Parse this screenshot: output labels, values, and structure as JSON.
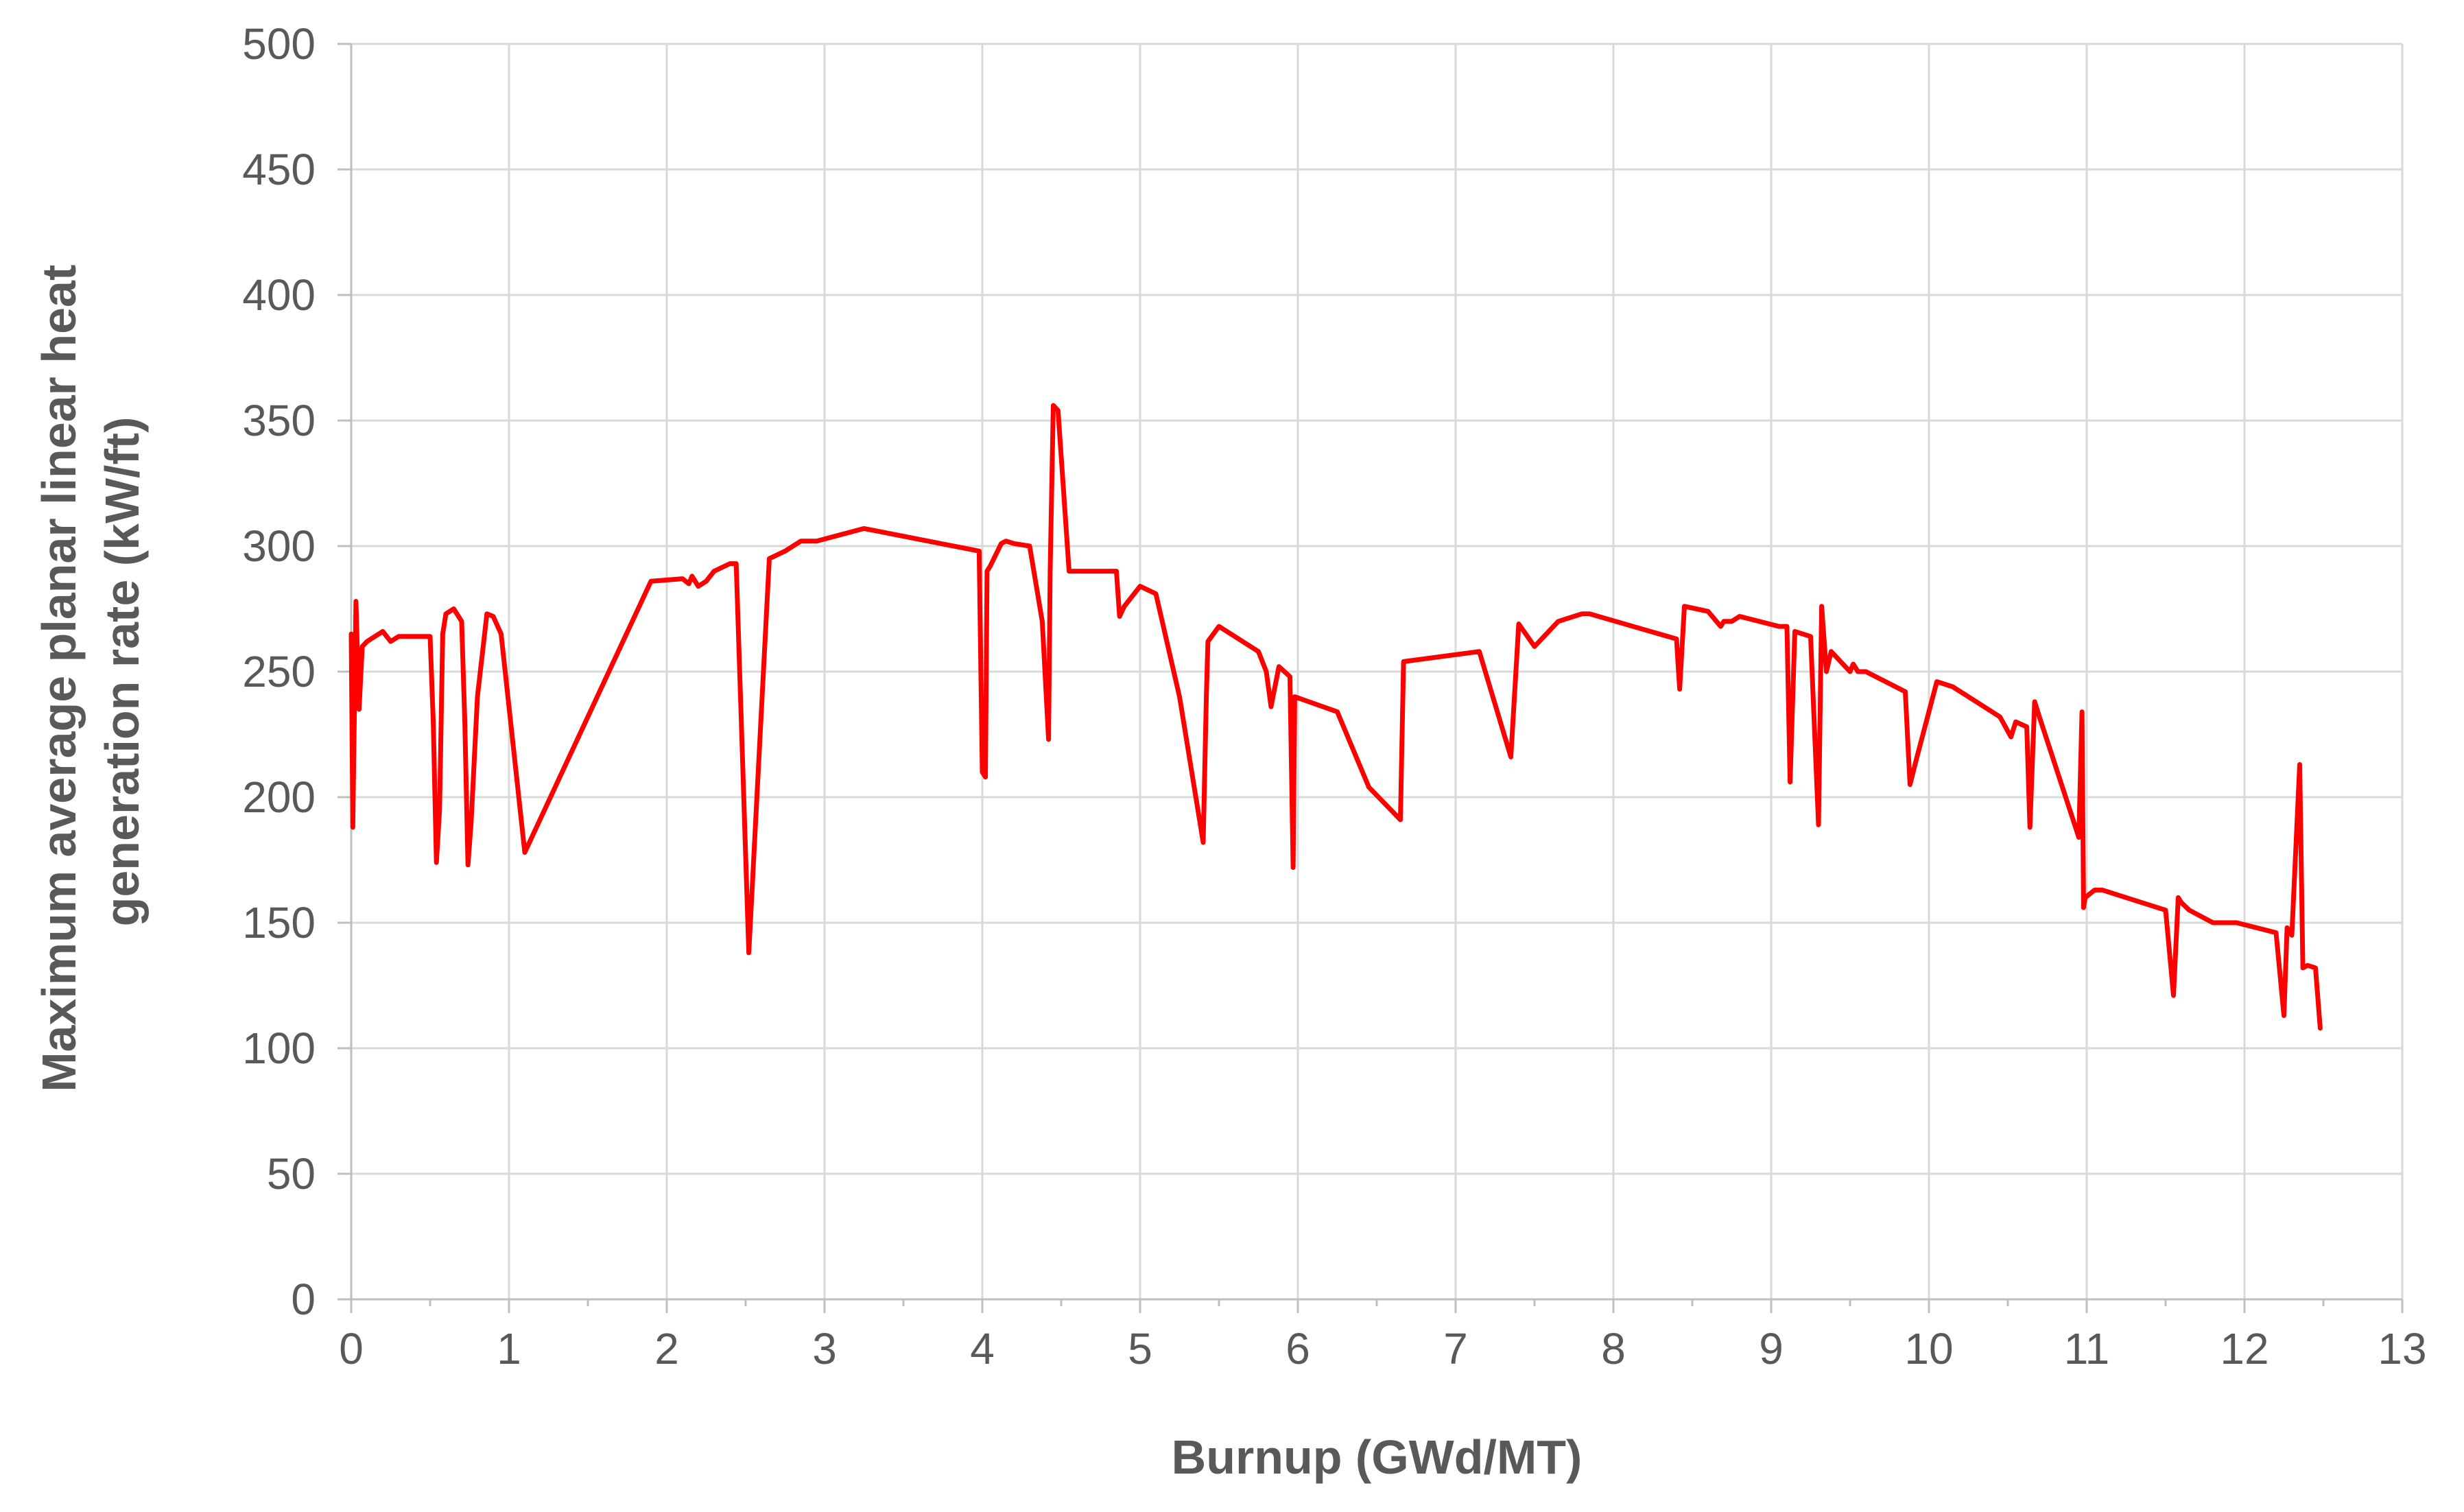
{
  "chart_data": {
    "type": "line",
    "title": "",
    "xlabel": "Burnup (GWd/MT)",
    "ylabel_lines": [
      "Maximum average planar linear heat",
      "generation rate  (kW/ft)"
    ],
    "xlim": [
      0,
      13
    ],
    "ylim": [
      0,
      500
    ],
    "x_ticks": [
      0,
      1,
      2,
      3,
      4,
      5,
      6,
      7,
      8,
      9,
      10,
      11,
      12,
      13
    ],
    "y_ticks": [
      0,
      50,
      100,
      150,
      200,
      250,
      300,
      350,
      400,
      450,
      500
    ],
    "grid": true,
    "legend": "none",
    "series": [
      {
        "color": "#ff0000",
        "x": [
          0.0,
          0.01,
          0.03,
          0.05,
          0.07,
          0.1,
          0.2,
          0.25,
          0.3,
          0.45,
          0.5,
          0.52,
          0.54,
          0.56,
          0.58,
          0.6,
          0.65,
          0.7,
          0.72,
          0.74,
          0.76,
          0.8,
          0.86,
          0.9,
          0.95,
          1.1,
          1.9,
          2.1,
          2.14,
          2.16,
          2.2,
          2.25,
          2.3,
          2.4,
          2.44,
          2.52,
          2.65,
          2.75,
          2.85,
          2.95,
          3.25,
          3.98,
          4.0,
          4.02,
          4.03,
          4.05,
          4.12,
          4.15,
          4.2,
          4.3,
          4.38,
          4.42,
          4.43,
          4.45,
          4.48,
          4.55,
          4.57,
          4.6,
          4.85,
          4.87,
          4.9,
          5.0,
          5.1,
          5.25,
          5.4,
          5.42,
          5.43,
          5.5,
          5.75,
          5.8,
          5.83,
          5.88,
          5.95,
          5.97,
          5.98,
          6.25,
          6.45,
          6.65,
          6.67,
          7.15,
          7.35,
          7.4,
          7.5,
          7.65,
          7.8,
          7.85,
          8.4,
          8.42,
          8.45,
          8.6,
          8.68,
          8.7,
          8.75,
          8.8,
          9.05,
          9.1,
          9.12,
          9.15,
          9.25,
          9.3,
          9.32,
          9.35,
          9.38,
          9.5,
          9.52,
          9.55,
          9.6,
          9.85,
          9.88,
          9.92,
          10.05,
          10.15,
          10.3,
          10.45,
          10.52,
          10.55,
          10.62,
          10.64,
          10.67,
          10.7,
          10.95,
          10.97,
          10.98,
          10.99,
          11.05,
          11.1,
          11.25,
          11.5,
          11.55,
          11.58,
          11.6,
          11.65,
          11.8,
          11.95,
          12.2,
          12.25,
          12.27,
          12.3,
          12.35,
          12.37,
          12.4,
          12.45,
          12.48
        ],
        "y": [
          265,
          188,
          278,
          235,
          260,
          262,
          266,
          262,
          264,
          264,
          264,
          230,
          174,
          195,
          265,
          273,
          275,
          270,
          230,
          173,
          190,
          240,
          273,
          272,
          265,
          178,
          286,
          287,
          285,
          288,
          284,
          286,
          290,
          293,
          293,
          138,
          295,
          298,
          302,
          302,
          307,
          298,
          210,
          208,
          290,
          292,
          301,
          302,
          301,
          300,
          270,
          223,
          290,
          356,
          354,
          290,
          290,
          290,
          290,
          272,
          276,
          284,
          281,
          240,
          182,
          240,
          262,
          268,
          258,
          250,
          236,
          252,
          248,
          172,
          240,
          234,
          204,
          191,
          254,
          258,
          216,
          269,
          260,
          270,
          273,
          273,
          263,
          243,
          276,
          274,
          268,
          270,
          270,
          272,
          268,
          268,
          206,
          266,
          264,
          189,
          276,
          250,
          258,
          250,
          253,
          250,
          250,
          242,
          205,
          215,
          246,
          244,
          238,
          232,
          224,
          230,
          228,
          188,
          238,
          232,
          184,
          234,
          156,
          160,
          163,
          163,
          160,
          155,
          121,
          160,
          158,
          155,
          150,
          150,
          146,
          113,
          148,
          145,
          213,
          132,
          133,
          132,
          108
        ]
      }
    ]
  }
}
